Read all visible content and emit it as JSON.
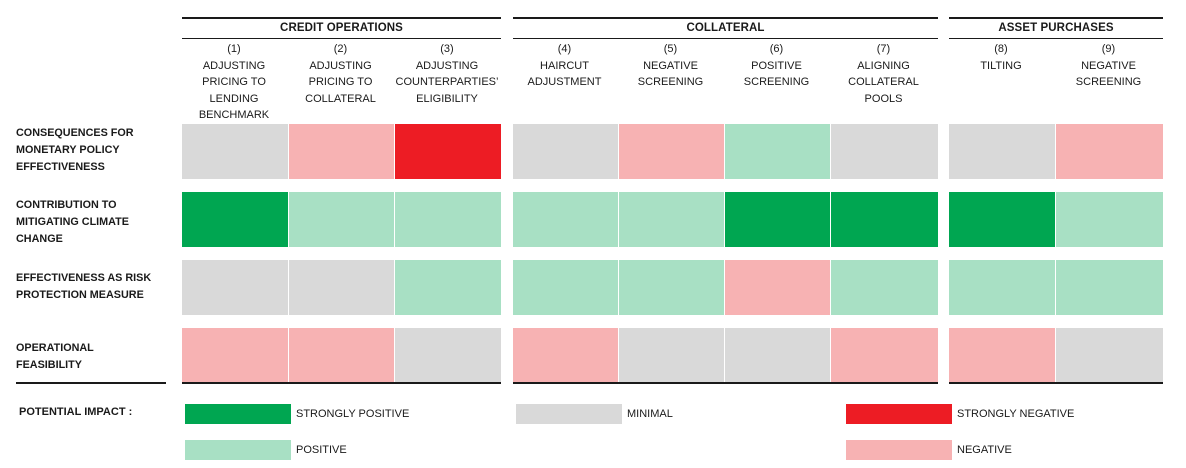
{
  "groups": [
    {
      "title": "CREDIT OPERATIONS"
    },
    {
      "title": "COLLATERAL"
    },
    {
      "title": "ASSET PURCHASES"
    }
  ],
  "columns": [
    {
      "number": "(1)",
      "label": [
        "ADJUSTING",
        "PRICING TO",
        "LENDING",
        "BENCHMARK"
      ]
    },
    {
      "number": "(2)",
      "label": [
        "ADJUSTING",
        "PRICING TO",
        "COLLATERAL"
      ]
    },
    {
      "number": "(3)",
      "label": [
        "ADJUSTING",
        "COUNTERPARTIES’",
        "ELIGIBILITY"
      ]
    },
    {
      "number": "(4)",
      "label": [
        "HAIRCUT",
        "ADJUSTMENT"
      ]
    },
    {
      "number": "(5)",
      "label": [
        "NEGATIVE",
        "SCREENING"
      ]
    },
    {
      "number": "(6)",
      "label": [
        "POSITIVE",
        "SCREENING"
      ]
    },
    {
      "number": "(7)",
      "label": [
        "ALIGNING",
        "COLLATERAL",
        "POOLS"
      ]
    },
    {
      "number": "(8)",
      "label": [
        "TILTING"
      ]
    },
    {
      "number": "(9)",
      "label": [
        "NEGATIVE",
        "SCREENING"
      ]
    }
  ],
  "rows": [
    {
      "label": [
        "CONSEQUENCES FOR",
        "MONETARY POLICY",
        "EFFECTIVENESS"
      ],
      "ratings": [
        "minimal",
        "negative",
        "strongly_negative",
        "minimal",
        "negative",
        "positive",
        "minimal",
        "minimal",
        "negative"
      ]
    },
    {
      "label": [
        "CONTRIBUTION TO",
        "MITIGATING CLIMATE",
        "CHANGE"
      ],
      "ratings": [
        "strongly_positive",
        "positive",
        "positive",
        "positive",
        "positive",
        "strongly_positive",
        "strongly_positive",
        "strongly_positive",
        "positive"
      ]
    },
    {
      "label": [
        "EFFECTIVENESS AS RISK",
        "PROTECTION MEASURE"
      ],
      "ratings": [
        "minimal",
        "minimal",
        "positive",
        "positive",
        "positive",
        "negative",
        "positive",
        "positive",
        "positive"
      ]
    },
    {
      "label": [
        "OPERATIONAL",
        "FEASIBILITY"
      ],
      "ratings": [
        "negative",
        "negative",
        "minimal",
        "negative",
        "minimal",
        "minimal",
        "negative",
        "negative",
        "minimal"
      ]
    }
  ],
  "colors": {
    "strongly_positive": "#00a651",
    "positive": "#a8e0c4",
    "minimal": "#d9d9d9",
    "negative": "#f7b2b3",
    "strongly_negative": "#ed1c24"
  },
  "legend": {
    "title": "POTENTIAL IMPACT :",
    "items": [
      {
        "key": "strongly_positive",
        "label": "STRONGLY POSITIVE"
      },
      {
        "key": "positive",
        "label": "POSITIVE"
      },
      {
        "key": "minimal",
        "label": "MINIMAL"
      },
      {
        "key": "strongly_negative",
        "label": "STRONGLY NEGATIVE"
      },
      {
        "key": "negative",
        "label": "NEGATIVE"
      }
    ]
  }
}
